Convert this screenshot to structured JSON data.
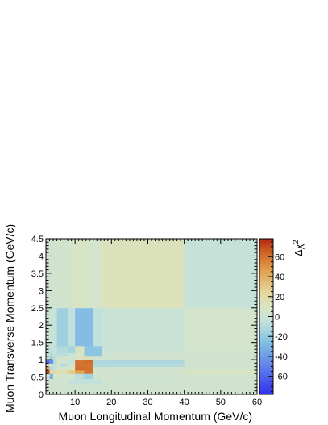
{
  "chart_data": {
    "type": "heatmap",
    "xlabel": "Muon Longitudinal Momentum (GeV/c)",
    "ylabel": "Muon Transverse Momentum (GeV/c)",
    "zlabel": "Δχ",
    "zlabel_superscript": "2",
    "xlim": [
      2,
      60
    ],
    "ylim": [
      0,
      4.5
    ],
    "zlim": [
      -78,
      78
    ],
    "x_tick_labels": [
      "10",
      "20",
      "30",
      "40",
      "50",
      "60"
    ],
    "y_tick_labels": [
      "0",
      "0.5",
      "1",
      "1.5",
      "2",
      "2.5",
      "3",
      "3.5",
      "4",
      "4.5"
    ],
    "z_tick_labels": [
      "-60",
      "-40",
      "-20",
      "0",
      "20",
      "40",
      "60"
    ],
    "x_bin_edges": [
      2,
      3,
      4,
      5,
      6,
      8,
      10,
      12.5,
      15,
      17.5,
      20,
      40,
      60
    ],
    "y_bin_edges": [
      0,
      0.3,
      0.45,
      0.6,
      0.7,
      0.8,
      0.9,
      1.0,
      1.1,
      1.2,
      1.4,
      2.5,
      4.5
    ],
    "z_values": [
      [
        2,
        2,
        3,
        3,
        3,
        3,
        2,
        2,
        2,
        3,
        3,
        3
      ],
      [
        4,
        2,
        4,
        4,
        2,
        -5,
        -5,
        -5,
        -5,
        2,
        2,
        3
      ],
      [
        3,
        -30,
        8,
        5,
        4,
        5,
        -8,
        -15,
        4,
        3,
        3,
        4
      ],
      [
        72,
        18,
        25,
        15,
        18,
        30,
        45,
        60,
        5,
        4,
        4,
        10
      ],
      [
        42,
        -10,
        -5,
        6,
        10,
        10,
        62,
        60,
        3,
        3,
        4,
        5
      ],
      [
        6,
        -5,
        -3,
        4,
        -8,
        4,
        60,
        60,
        -10,
        -10,
        -10,
        3
      ],
      [
        -55,
        -45,
        -10,
        6,
        2,
        -4,
        60,
        62,
        -12,
        -12,
        -12,
        3
      ],
      [
        -5,
        -15,
        -8,
        4,
        4,
        4,
        12,
        14,
        3,
        3,
        3,
        3
      ],
      [
        -4,
        -10,
        -6,
        -8,
        -8,
        -4,
        8,
        -22,
        -22,
        3,
        3,
        3
      ],
      [
        -4,
        -5,
        -4,
        -10,
        -10,
        -14,
        10,
        -22,
        -22,
        -1,
        -1,
        5
      ],
      [
        -2,
        -1,
        -4,
        -16,
        -16,
        -6,
        -26,
        -26,
        -6,
        -2,
        -2,
        6
      ],
      [
        2,
        2,
        2,
        4,
        4,
        6,
        10,
        6,
        6,
        13,
        13,
        -3
      ]
    ]
  }
}
